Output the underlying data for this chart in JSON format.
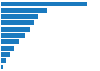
{
  "values": [
    14.5,
    7.8,
    6.2,
    5.5,
    4.8,
    4.0,
    3.0,
    2.2,
    1.5,
    0.9,
    0.4
  ],
  "bar_color": "#1a7abf",
  "background_color": "#ffffff",
  "grid_color": "#d0d0d0",
  "xlim": [
    0,
    16.5
  ]
}
